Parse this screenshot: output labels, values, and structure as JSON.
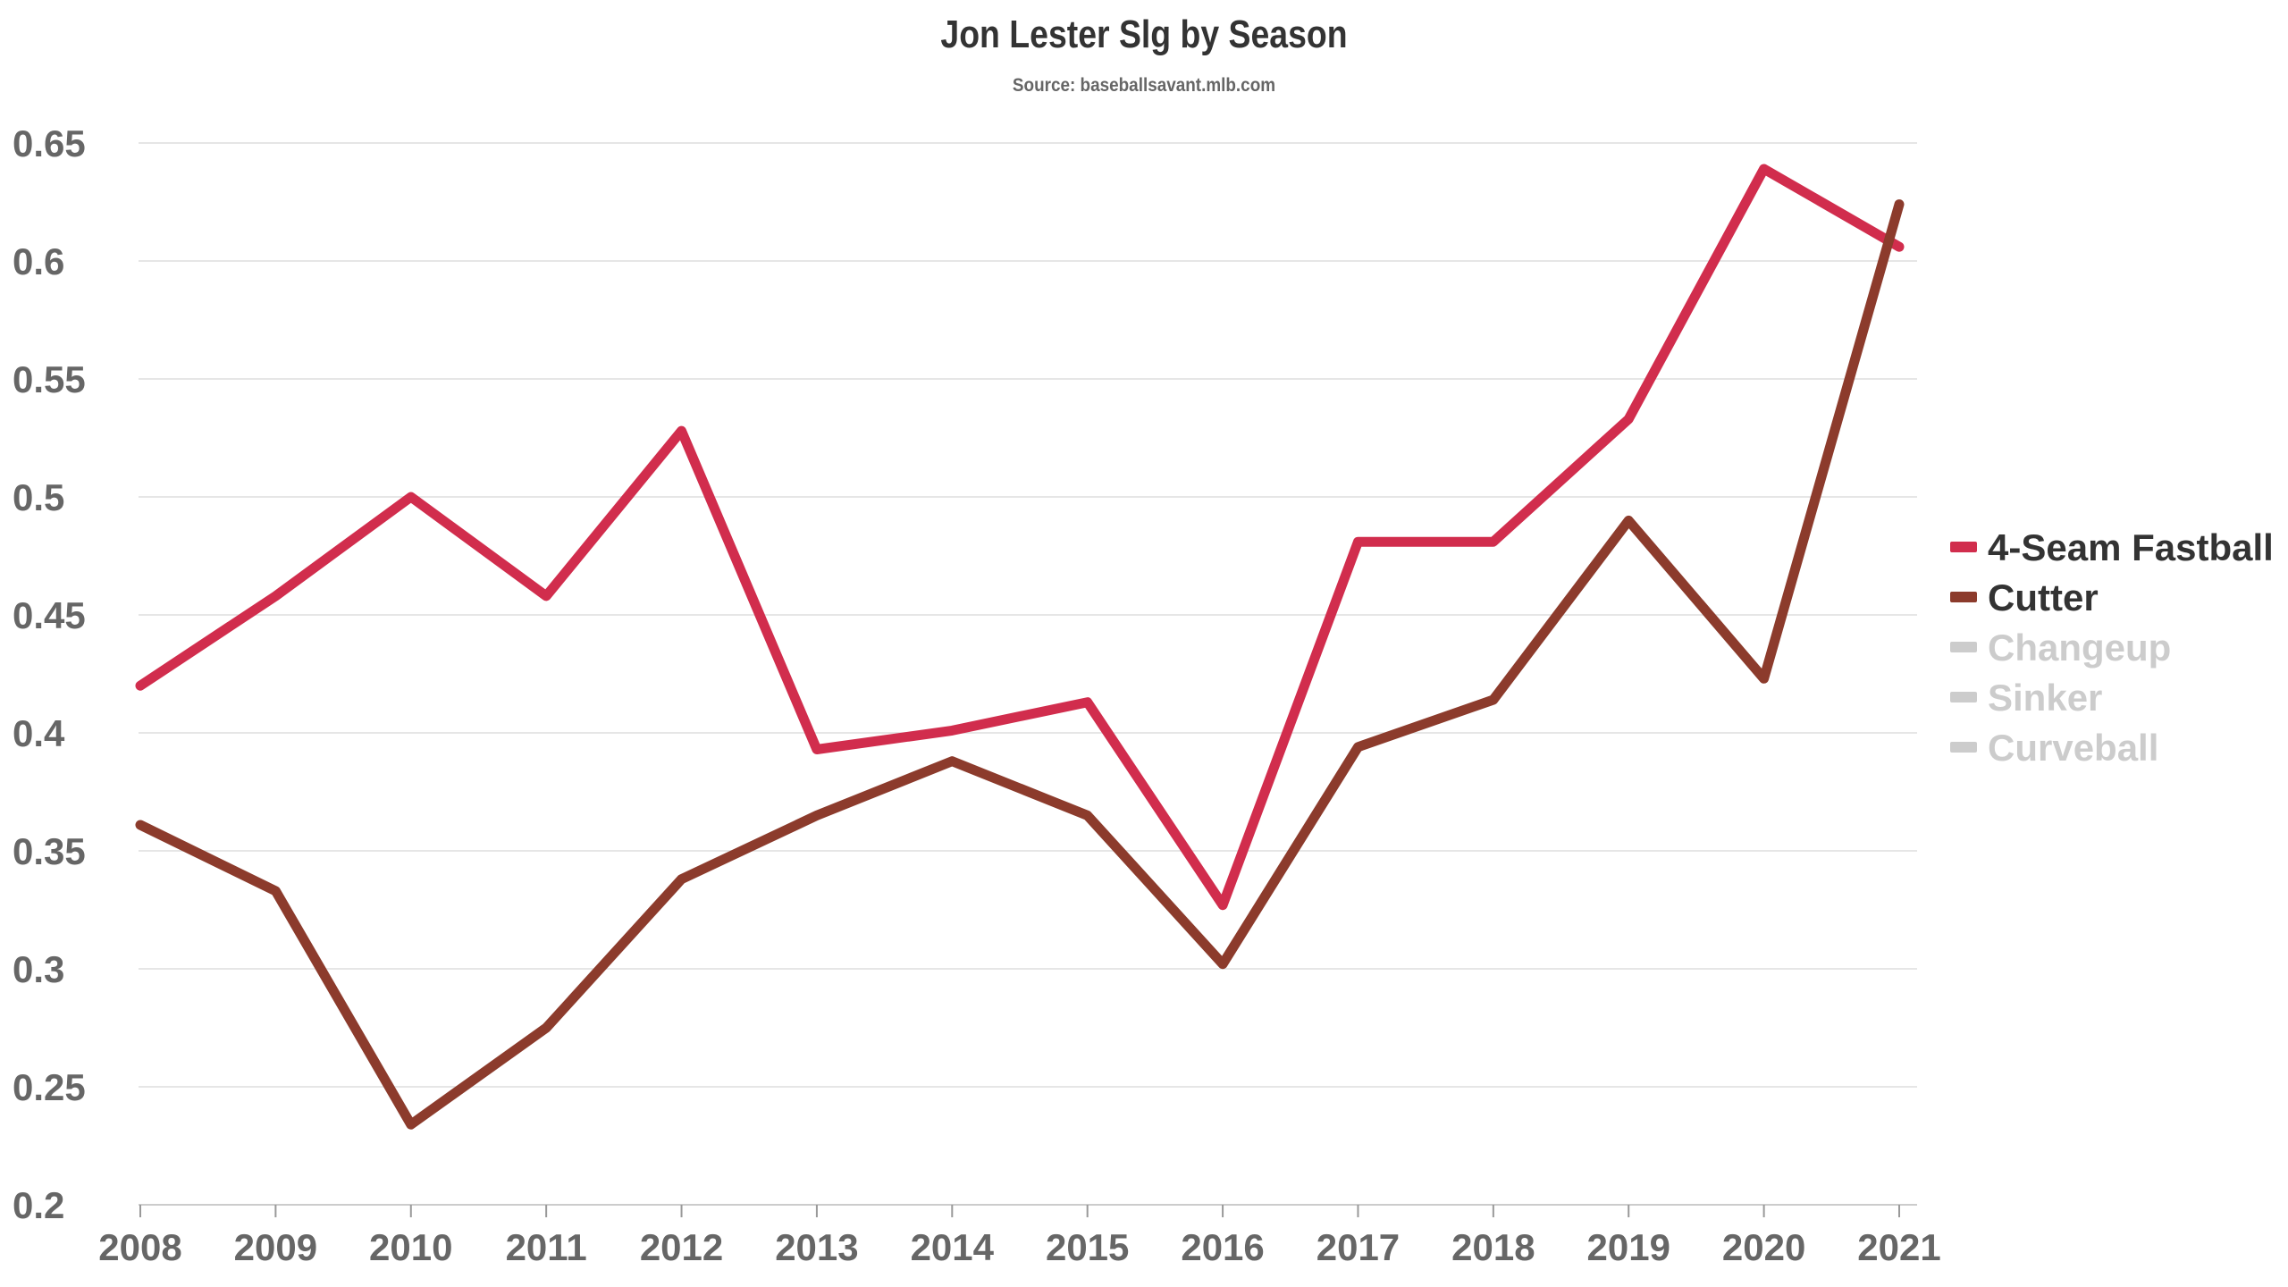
{
  "chart_data": {
    "type": "line",
    "title": "Jon Lester Slg by Season",
    "subtitle": "Source: baseballsavant.mlb.com",
    "xlabel": "",
    "ylabel": "",
    "x": [
      "2008",
      "2009",
      "2010",
      "2011",
      "2012",
      "2013",
      "2014",
      "2015",
      "2016",
      "2017",
      "2018",
      "2019",
      "2020",
      "2021"
    ],
    "ylim": [
      0.2,
      0.65
    ],
    "yticks": [
      0.2,
      0.25,
      0.3,
      0.35,
      0.4,
      0.45,
      0.5,
      0.55,
      0.6,
      0.65
    ],
    "grid": true,
    "legend_position": "right",
    "series": [
      {
        "name": "4-Seam Fastball",
        "color": "#d12d4d",
        "visible": true,
        "values": [
          0.42,
          0.458,
          0.5,
          0.458,
          0.528,
          0.393,
          0.401,
          0.413,
          0.327,
          0.481,
          0.481,
          0.533,
          0.639,
          0.606
        ]
      },
      {
        "name": "Cutter",
        "color": "#8c3b2c",
        "visible": true,
        "values": [
          0.361,
          0.333,
          0.234,
          0.275,
          0.338,
          0.365,
          0.388,
          0.365,
          0.302,
          0.394,
          0.414,
          0.49,
          0.423,
          0.624
        ]
      }
    ],
    "legend": [
      {
        "name": "4-Seam Fastball",
        "color": "#d12d4d",
        "active": true
      },
      {
        "name": "Cutter",
        "color": "#8c3b2c",
        "active": true
      },
      {
        "name": "Changeup",
        "color": "#cccccc",
        "active": false
      },
      {
        "name": "Sinker",
        "color": "#cccccc",
        "active": false
      },
      {
        "name": "Curveball",
        "color": "#cccccc",
        "active": false
      }
    ]
  }
}
